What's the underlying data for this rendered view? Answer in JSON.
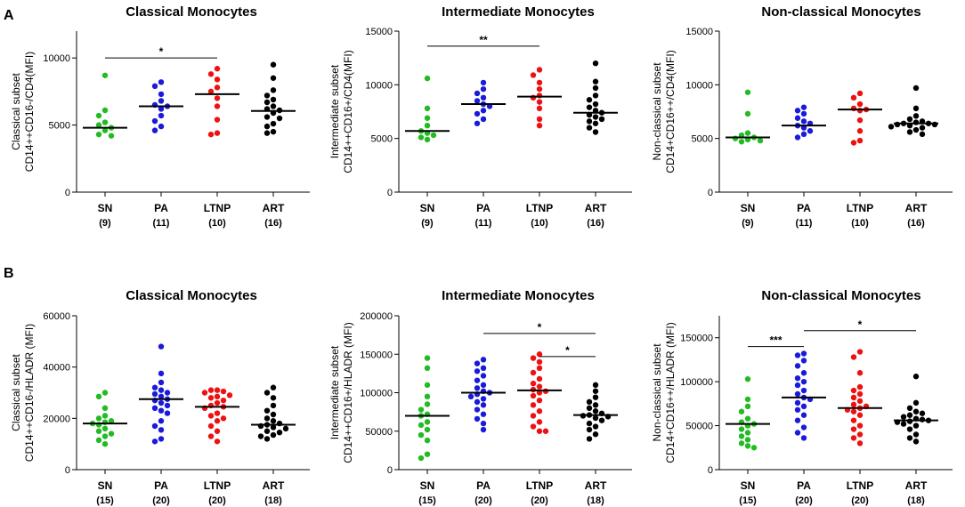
{
  "panels": [
    "A",
    "B"
  ],
  "colors": {
    "SN": "#22bb22",
    "PA": "#1a1adb",
    "LTNP": "#ee1111",
    "ART": "#000000"
  },
  "chart_data": [
    {
      "type": "scatter",
      "panel": "A",
      "title": "Classical Monocytes",
      "ylabel": [
        "Classical subset",
        "CD14++CD16-/CD4(MFI)"
      ],
      "ylim": [
        0,
        12000
      ],
      "yticks": [
        0,
        5000,
        10000
      ],
      "ytick_labels": [
        "0",
        "5000",
        "10000"
      ],
      "categories": [
        "SN",
        "PA",
        "LTNP",
        "ART"
      ],
      "counts": [
        "(9)",
        "(11)",
        "(10)",
        "(16)"
      ],
      "medians": [
        4800,
        6400,
        7300,
        6050
      ],
      "series": [
        {
          "name": "SN",
          "values": [
            8700,
            6100,
            5700,
            5200,
            5000,
            4800,
            4600,
            4300,
            4200
          ]
        },
        {
          "name": "PA",
          "values": [
            8200,
            7900,
            7300,
            6800,
            6500,
            6400,
            6200,
            5700,
            5300,
            4900,
            4600
          ]
        },
        {
          "name": "LTNP",
          "values": [
            9200,
            8800,
            8400,
            7800,
            7500,
            7000,
            6400,
            5400,
            4400,
            4300
          ]
        },
        {
          "name": "ART",
          "values": [
            9500,
            8500,
            7600,
            7200,
            6900,
            6700,
            6400,
            6200,
            6100,
            5900,
            5600,
            5500,
            5100,
            4900,
            4500,
            4400
          ]
        }
      ],
      "significance": [
        {
          "from": 0,
          "to": 2,
          "y": 10000,
          "label": "*"
        }
      ]
    },
    {
      "type": "scatter",
      "panel": "A",
      "title": "Intermediate Monocytes",
      "ylabel": [
        "Intermediate subset",
        "CD14++CD16+/CD4(MFI)"
      ],
      "ylim": [
        0,
        15000
      ],
      "yticks": [
        0,
        5000,
        10000,
        15000
      ],
      "ytick_labels": [
        "0",
        "5000",
        "10000",
        "15000"
      ],
      "categories": [
        "SN",
        "PA",
        "LTNP",
        "ART"
      ],
      "counts": [
        "(9)",
        "(11)",
        "(10)",
        "(16)"
      ],
      "medians": [
        5700,
        8200,
        8900,
        7400
      ],
      "series": [
        {
          "name": "SN",
          "values": [
            10600,
            7800,
            6900,
            6200,
            5700,
            5500,
            5300,
            5100,
            4900
          ]
        },
        {
          "name": "PA",
          "values": [
            10200,
            9600,
            9200,
            8800,
            8500,
            8200,
            8000,
            7600,
            7300,
            6800,
            6400
          ]
        },
        {
          "name": "LTNP",
          "values": [
            11400,
            10900,
            10200,
            9600,
            9000,
            8800,
            8400,
            7800,
            6800,
            6200
          ]
        },
        {
          "name": "ART",
          "values": [
            12000,
            10300,
            9700,
            9000,
            8600,
            8200,
            7900,
            7600,
            7400,
            7200,
            7000,
            6800,
            6600,
            6400,
            6000,
            5600
          ]
        }
      ],
      "significance": [
        {
          "from": 0,
          "to": 2,
          "y": 13600,
          "label": "**"
        }
      ]
    },
    {
      "type": "scatter",
      "panel": "A",
      "title": "Non-classical Monocytes",
      "ylabel": [
        "Non-classical subset",
        "CD14+CD16++/CD4(MFI)"
      ],
      "ylim": [
        0,
        15000
      ],
      "yticks": [
        0,
        5000,
        10000,
        15000
      ],
      "ytick_labels": [
        "0",
        "5000",
        "10000",
        "15000"
      ],
      "categories": [
        "SN",
        "PA",
        "LTNP",
        "ART"
      ],
      "counts": [
        "(9)",
        "(11)",
        "(10)",
        "(16)"
      ],
      "medians": [
        5100,
        6200,
        7700,
        6400
      ],
      "series": [
        {
          "name": "SN",
          "values": [
            9300,
            7300,
            5500,
            5300,
            5100,
            5000,
            4900,
            4800,
            4700
          ]
        },
        {
          "name": "PA",
          "values": [
            7900,
            7600,
            7300,
            6900,
            6600,
            6400,
            6200,
            6000,
            5700,
            5400,
            5100
          ]
        },
        {
          "name": "LTNP",
          "values": [
            9200,
            8800,
            8200,
            7800,
            7700,
            7600,
            6700,
            5700,
            4800,
            4600
          ]
        },
        {
          "name": "ART",
          "values": [
            9700,
            7800,
            7100,
            6800,
            6600,
            6500,
            6400,
            6400,
            6300,
            6300,
            6200,
            6100,
            6000,
            5800,
            5600,
            5400
          ]
        }
      ],
      "significance": []
    },
    {
      "type": "scatter",
      "panel": "B",
      "title": "Classical Monocytes",
      "ylabel": [
        "Classical subset",
        "CD14++CD16-/HLADR (MFI)"
      ],
      "ylim": [
        0,
        60000
      ],
      "yticks": [
        0,
        20000,
        40000,
        60000
      ],
      "ytick_labels": [
        "0",
        "20000",
        "40000",
        "60000"
      ],
      "categories": [
        "SN",
        "PA",
        "LTNP",
        "ART"
      ],
      "counts": [
        "(15)",
        "(20)",
        "(20)",
        "(18)"
      ],
      "medians": [
        18000,
        27500,
        24500,
        17500
      ],
      "series": [
        {
          "name": "SN",
          "values": [
            30000,
            28500,
            24000,
            21000,
            20000,
            19000,
            18500,
            18000,
            17500,
            16000,
            15000,
            14000,
            13000,
            11500,
            10000
          ]
        },
        {
          "name": "PA",
          "values": [
            48000,
            37500,
            34000,
            32000,
            31000,
            30000,
            29500,
            28500,
            27500,
            27000,
            26000,
            25000,
            24000,
            23000,
            22000,
            19000,
            17000,
            15500,
            12000,
            11000
          ]
        },
        {
          "name": "LTNP",
          "values": [
            31000,
            31000,
            30500,
            30000,
            29000,
            28500,
            28000,
            27000,
            26000,
            25000,
            24500,
            24000,
            22000,
            21000,
            20000,
            19000,
            17000,
            15000,
            13000,
            11000
          ]
        },
        {
          "name": "ART",
          "values": [
            32000,
            30000,
            28000,
            25000,
            23000,
            21500,
            20000,
            19000,
            18000,
            17500,
            17000,
            16500,
            16000,
            15000,
            14500,
            13500,
            13000,
            12000
          ]
        }
      ],
      "significance": []
    },
    {
      "type": "scatter",
      "panel": "B",
      "title": "Intermediate Monocytes",
      "ylabel": [
        "Intermediate subset",
        "CD14++CD16+/HLADR (MFI)"
      ],
      "ylim": [
        0,
        200000
      ],
      "yticks": [
        0,
        50000,
        100000,
        150000,
        200000
      ],
      "ytick_labels": [
        "0",
        "50000",
        "100000",
        "150000",
        "200000"
      ],
      "categories": [
        "SN",
        "PA",
        "LTNP",
        "ART"
      ],
      "counts": [
        "(15)",
        "(20)",
        "(20)",
        "(18)"
      ],
      "medians": [
        70000,
        100000,
        103000,
        71000
      ],
      "series": [
        {
          "name": "SN",
          "values": [
            145000,
            132000,
            110000,
            95000,
            85000,
            78000,
            72000,
            70000,
            62000,
            58000,
            52000,
            45000,
            38000,
            20000,
            15000
          ]
        },
        {
          "name": "PA",
          "values": [
            143000,
            138000,
            132000,
            128000,
            122000,
            116000,
            110000,
            106000,
            102000,
            100000,
            98000,
            95000,
            92000,
            88000,
            84000,
            78000,
            72000,
            66000,
            60000,
            52000
          ]
        },
        {
          "name": "LTNP",
          "values": [
            150000,
            145000,
            140000,
            132000,
            126000,
            118000,
            112000,
            108000,
            104000,
            102000,
            100000,
            96000,
            90000,
            84000,
            76000,
            70000,
            62000,
            56000,
            50000,
            50000
          ]
        },
        {
          "name": "ART",
          "values": [
            110000,
            102000,
            94000,
            88000,
            84000,
            80000,
            76000,
            73000,
            71000,
            70000,
            69000,
            67000,
            64000,
            60000,
            56000,
            52000,
            46000,
            40000
          ]
        }
      ],
      "significance": [
        {
          "from": 1,
          "to": 3,
          "y": 177000,
          "label": "*"
        },
        {
          "from": 2,
          "to": 3,
          "y": 147000,
          "label": "*"
        }
      ]
    },
    {
      "type": "scatter",
      "panel": "B",
      "title": "Non-classical Monocytes",
      "ylabel": [
        "Non-classical subset",
        "CD14+CD16++/HLADR (MFI)"
      ],
      "ylim": [
        0,
        175000
      ],
      "yticks": [
        0,
        50000,
        100000,
        150000
      ],
      "ytick_labels": [
        "0",
        "50000",
        "100000",
        "150000"
      ],
      "categories": [
        "SN",
        "PA",
        "LTNP",
        "ART"
      ],
      "counts": [
        "(15)",
        "(20)",
        "(20)",
        "(18)"
      ],
      "medians": [
        52000,
        82000,
        70000,
        56000
      ],
      "series": [
        {
          "name": "SN",
          "values": [
            103000,
            80000,
            72000,
            66000,
            58000,
            54000,
            52000,
            50000,
            46000,
            42000,
            38000,
            34000,
            30000,
            27000,
            25000
          ]
        },
        {
          "name": "PA",
          "values": [
            132000,
            130000,
            124000,
            118000,
            110000,
            104000,
            100000,
            96000,
            90000,
            86000,
            82000,
            80000,
            76000,
            72000,
            68000,
            62000,
            56000,
            48000,
            42000,
            36000
          ]
        },
        {
          "name": "LTNP",
          "values": [
            134000,
            128000,
            110000,
            94000,
            90000,
            86000,
            82000,
            78000,
            74000,
            72000,
            70000,
            68000,
            66000,
            62000,
            56000,
            50000,
            46000,
            40000,
            36000,
            30000
          ]
        },
        {
          "name": "ART",
          "values": [
            106000,
            76000,
            70000,
            66000,
            64000,
            62000,
            60000,
            58000,
            57000,
            56000,
            55000,
            54000,
            52000,
            50000,
            46000,
            40000,
            36000,
            32000
          ]
        }
      ],
      "significance": [
        {
          "from": 0,
          "to": 1,
          "y": 140000,
          "label": "***"
        },
        {
          "from": 1,
          "to": 3,
          "y": 158000,
          "label": "*"
        }
      ]
    }
  ]
}
